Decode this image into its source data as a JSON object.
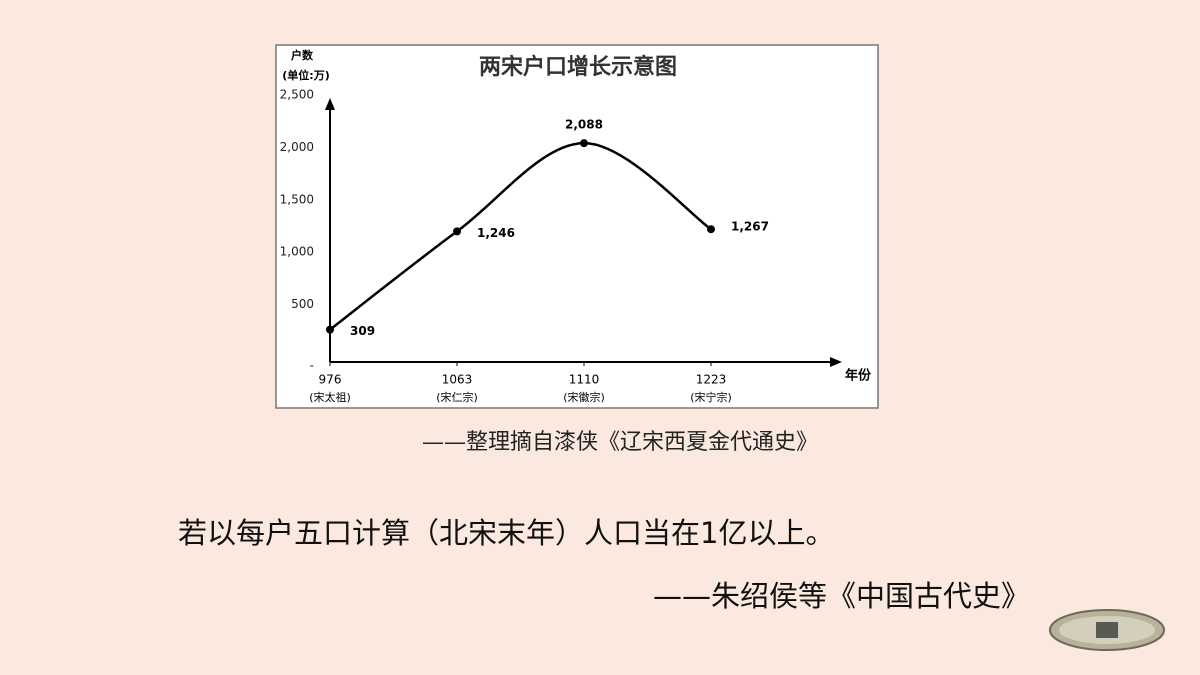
{
  "chart_data": {
    "type": "line",
    "title": "两宋户口增长示意图",
    "y_label": "户数",
    "y_unit": "(单位:万)",
    "x_label": "年份",
    "categories": [
      "976",
      "1063",
      "1110",
      "1223"
    ],
    "category_notes": [
      "(宋太祖)",
      "(宋仁宗)",
      "(宋徽宗)",
      "(宋宁宗)"
    ],
    "values": [
      309,
      1246,
      2088,
      1267
    ],
    "value_labels": [
      "309",
      "1,246",
      "2,088",
      "1,267"
    ],
    "color": "#000000",
    "ylim": [
      0,
      2500
    ],
    "yticks": [
      {
        "value": 0,
        "label": "-"
      },
      500,
      {
        "value": 1000,
        "label": "1,000"
      },
      {
        "value": 1500,
        "label": "1,500"
      },
      {
        "value": 2000,
        "label": "2,000"
      },
      {
        "value": 2500,
        "label": "2,500"
      }
    ],
    "grid": false
  },
  "source": "——整理摘自漆侠《辽宋西夏金代通史》",
  "quote": {
    "text": "若以每户五口计算（北宋末年）人口当在1亿以上。",
    "attribution": "——朱绍侯等《中国古代史》"
  }
}
